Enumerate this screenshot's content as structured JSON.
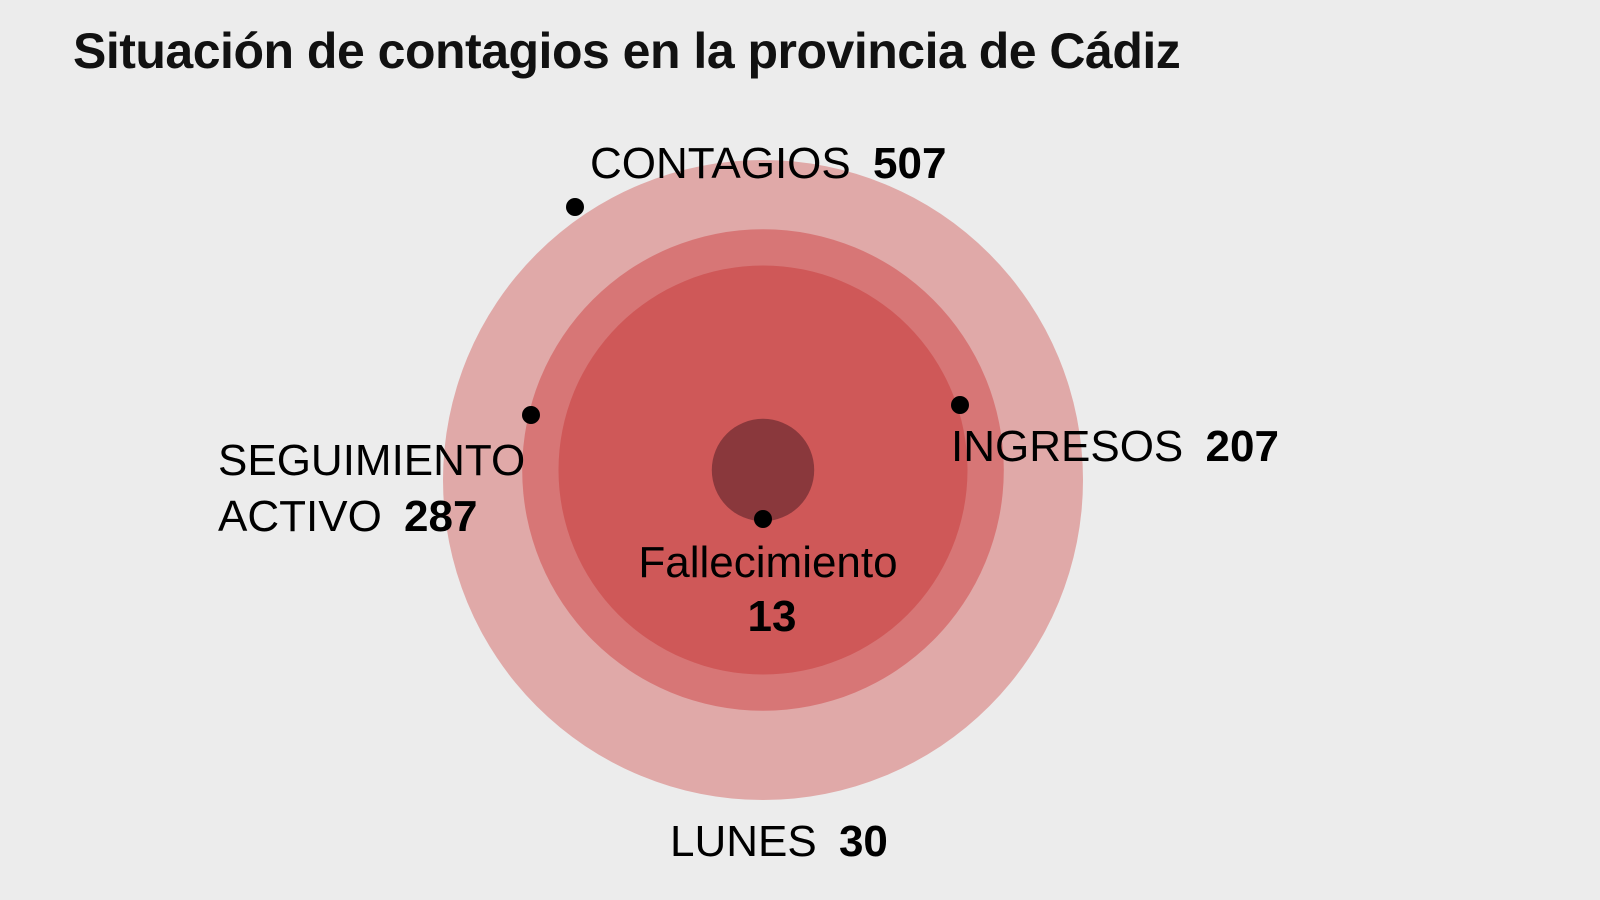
{
  "title": "Situación de contagios en la provincia de Cádiz",
  "colors": {
    "background": "#ececec",
    "contagios": "#e0a9a8",
    "seguimiento": "#d77676",
    "ingresos": "#cf5858",
    "fallecimiento": "#8a383c",
    "dot": "#000000"
  },
  "chart_data": {
    "type": "nested-circles",
    "title": "Situación de contagios en la provincia de Cádiz",
    "series": [
      {
        "name": "CONTAGIOS",
        "value": 507
      },
      {
        "name": "SEGUIMIENTO ACTIVO",
        "value": 287
      },
      {
        "name": "INGRESOS",
        "value": 207
      },
      {
        "name": "Fallecimiento",
        "value": 13
      }
    ],
    "labels": {
      "contagios": {
        "text": "CONTAGIOS",
        "value": "507"
      },
      "seguimiento": {
        "line1": "SEGUIMIENTO",
        "line2": "ACTIVO",
        "value": "287"
      },
      "ingresos": {
        "text": "INGRESOS",
        "value": "207"
      },
      "fallecimiento": {
        "text": "Fallecimiento",
        "value": "13"
      }
    },
    "date": {
      "text": "LUNES",
      "value": "30"
    }
  }
}
